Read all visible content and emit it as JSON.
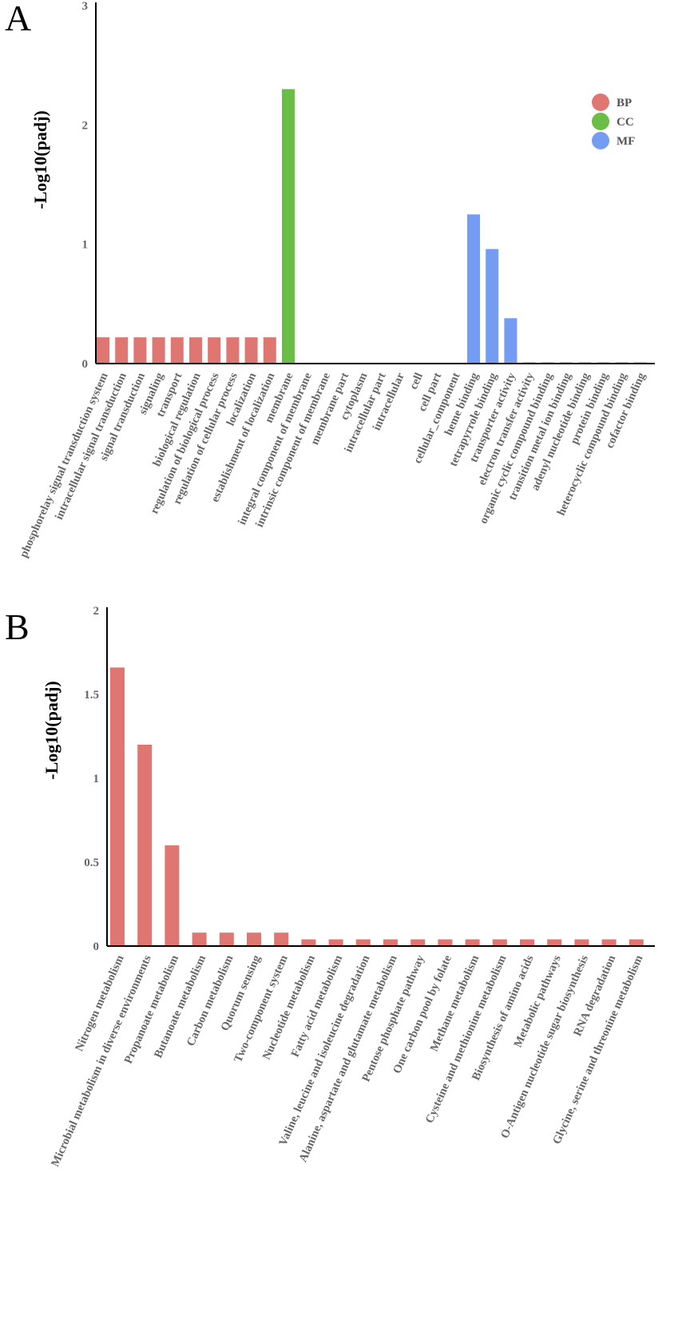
{
  "legend": [
    {
      "name": "BP",
      "color": "#e07671"
    },
    {
      "name": "CC",
      "color": "#6abd45"
    },
    {
      "name": "MF",
      "color": "#739cf2"
    }
  ],
  "chart_data": [
    {
      "type": "bar",
      "panel_label": "A",
      "title": "",
      "xlabel": "",
      "ylabel": "-Log10(padj)",
      "ylim": [
        0,
        3
      ],
      "yticks": [
        "0",
        "1",
        "2",
        "3"
      ],
      "grid": false,
      "legend_position": "top-right",
      "categories": [
        "phosphorelay signal transduction system",
        "intracellular signal transduction",
        "signal transduction",
        "signaling",
        "transport",
        "biological regulation",
        "regulation of biological process",
        "regulation of cellular process",
        "localization",
        "establishment of localization",
        "membrane",
        "integral component of membrane",
        "intrinsic component of membrane",
        "membrane part",
        "cytoplasm",
        "intracellular part",
        "intracellular",
        "cell",
        "cell part",
        "cellular_component",
        "heme binding",
        "tetrapyrrole binding",
        "transporter activity",
        "electron transfer activity",
        "organic cyclic compound binding",
        "transition metal ion binding",
        "adenyl nucleotide binding",
        "protein binding",
        "heterocyclic compound binding",
        "cofactor binding"
      ],
      "groups": [
        "BP",
        "BP",
        "BP",
        "BP",
        "BP",
        "BP",
        "BP",
        "BP",
        "BP",
        "BP",
        "CC",
        "CC",
        "CC",
        "CC",
        "CC",
        "CC",
        "CC",
        "CC",
        "CC",
        "CC",
        "MF",
        "MF",
        "MF",
        "MF",
        "MF",
        "MF",
        "MF",
        "MF",
        "MF",
        "MF"
      ],
      "values": [
        0.22,
        0.22,
        0.22,
        0.22,
        0.22,
        0.22,
        0.22,
        0.22,
        0.22,
        0.22,
        2.3,
        0,
        0,
        0,
        0,
        0,
        0,
        0,
        0,
        0,
        1.25,
        0.96,
        0.38,
        0.01,
        0.01,
        0.01,
        0.01,
        0.01,
        0.01,
        0.01
      ]
    },
    {
      "type": "bar",
      "panel_label": "B",
      "title": "",
      "xlabel": "",
      "ylabel": "-Log10(padj)",
      "ylim": [
        0,
        2
      ],
      "yticks": [
        "0",
        "0.5",
        "1",
        "1.5",
        "2"
      ],
      "grid": false,
      "categories": [
        "Nitrogen metabolism",
        "Microbial metabolism in diverse environments",
        "Propanoate metabolism",
        "Butanoate metabolism",
        "Carbon metabolism",
        "Quorum sensing",
        "Two-component system",
        "Nucleotide metabolism",
        "Fatty acid metabolism",
        "Valine, leucine and isoleucine degradation",
        "Alanine, aspartate and glutamate metabolism",
        "Pentose phosphate pathway",
        "One carbon pool by folate",
        "Methane metabolism",
        "Cysteine and methionine metabolism",
        "Biosynthesis of amino acids",
        "Metabolic pathways",
        "O-Antigen nucleotide sugar biosynthesis",
        "RNA degradation",
        "Glycine, serine and threonine metabolism"
      ],
      "color": "#e07671",
      "values": [
        1.66,
        1.2,
        0.6,
        0.08,
        0.08,
        0.08,
        0.08,
        0.04,
        0.04,
        0.04,
        0.04,
        0.04,
        0.04,
        0.04,
        0.04,
        0.04,
        0.04,
        0.04,
        0.04,
        0.04
      ]
    }
  ]
}
